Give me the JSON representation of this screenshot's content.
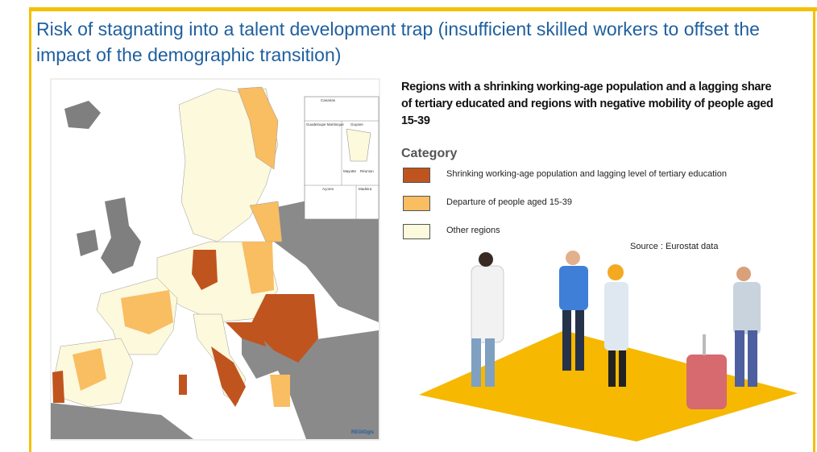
{
  "slide": {
    "title": "Risk of stagnating into a talent development trap (insufficient skilled workers to offset the impact of the demographic transition)",
    "map": {
      "insets": [
        "Canarias",
        "Guadeloupe Martinique",
        "Guyane",
        "Mayotte",
        "Réunion",
        "Açores",
        "Madeira"
      ],
      "credit": "REGIOgis"
    },
    "legend": {
      "heading": "Regions with a shrinking working-age population and a lagging share of tertiary educated and regions with negative mobility of people aged 15-39",
      "title": "Category",
      "items": [
        {
          "label": "Shrinking working-age population and lagging level of tertiary education",
          "color": "#c0541f"
        },
        {
          "label": "Departure of people aged 15-39",
          "color": "#f9bd62"
        },
        {
          "label": "Other regions",
          "color": "#fcf9dc"
        }
      ]
    },
    "source": "Source : Eurostat data"
  }
}
